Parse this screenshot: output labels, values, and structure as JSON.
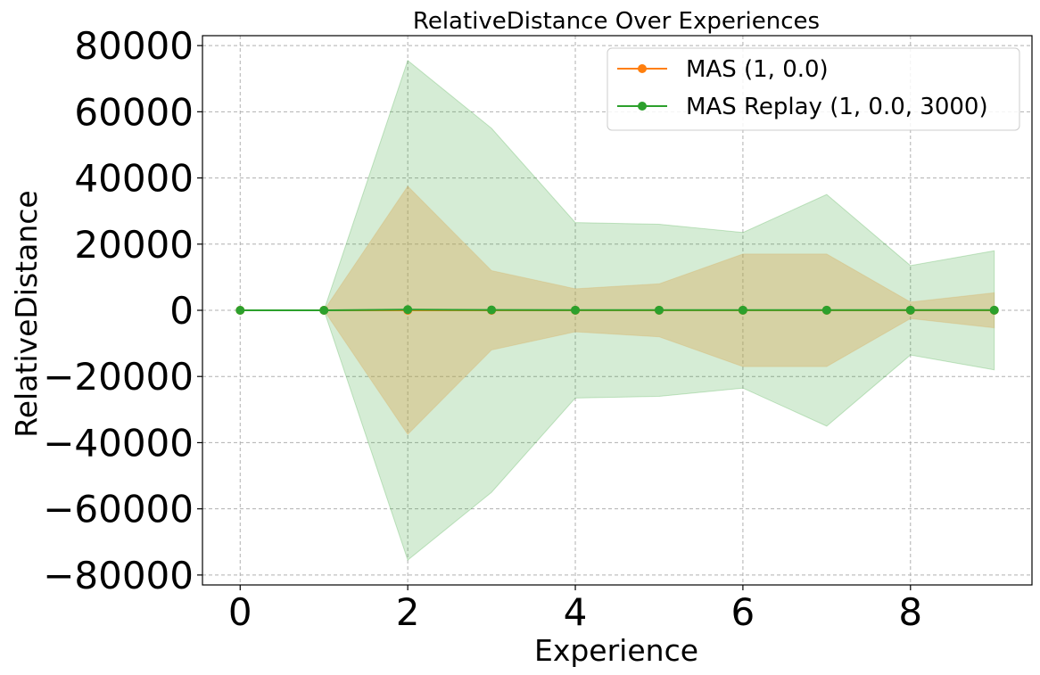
{
  "chart_data": {
    "type": "line",
    "title": "RelativeDistance Over Experiences",
    "xlabel": "Experience",
    "ylabel": "RelativeDistance",
    "xlim": [
      -0.45,
      9.45
    ],
    "ylim": [
      -83000,
      83000
    ],
    "xticks": [
      0,
      2,
      4,
      6,
      8
    ],
    "xtick_labels": [
      "0",
      "2",
      "4",
      "6",
      "8"
    ],
    "yticks": [
      -80000,
      -60000,
      -40000,
      -20000,
      0,
      20000,
      40000,
      60000,
      80000
    ],
    "ytick_labels": [
      "−80000",
      "−60000",
      "−40000",
      "−20000",
      "0",
      "20000",
      "40000",
      "60000",
      "80000"
    ],
    "grid": true,
    "legend_position": "top-right",
    "x": [
      0,
      1,
      2,
      3,
      4,
      5,
      6,
      7,
      8,
      9
    ],
    "series": [
      {
        "name": "MAS (1, 0.0)",
        "color": "#ff7f0e",
        "band_color": "#d9a44a",
        "values": [
          0,
          0,
          0,
          0,
          0,
          0,
          0,
          0,
          0,
          0
        ],
        "band_upper": [
          0,
          0,
          37500,
          12000,
          6500,
          8000,
          17000,
          17000,
          2500,
          5300
        ],
        "band_lower": [
          0,
          0,
          -37500,
          -12000,
          -6500,
          -8000,
          -17000,
          -17000,
          -2500,
          -5300
        ]
      },
      {
        "name": "MAS Replay (1, 0.0, 3000)",
        "color": "#2ca02c",
        "band_color": "#2ca02c",
        "values": [
          0,
          0,
          200,
          100,
          50,
          50,
          50,
          50,
          50,
          50
        ],
        "band_upper": [
          0,
          0,
          75500,
          55000,
          26500,
          26000,
          23500,
          35000,
          13500,
          18000
        ],
        "band_lower": [
          0,
          0,
          -75500,
          -55000,
          -26500,
          -26000,
          -23500,
          -35000,
          -13500,
          -18000
        ]
      }
    ]
  }
}
